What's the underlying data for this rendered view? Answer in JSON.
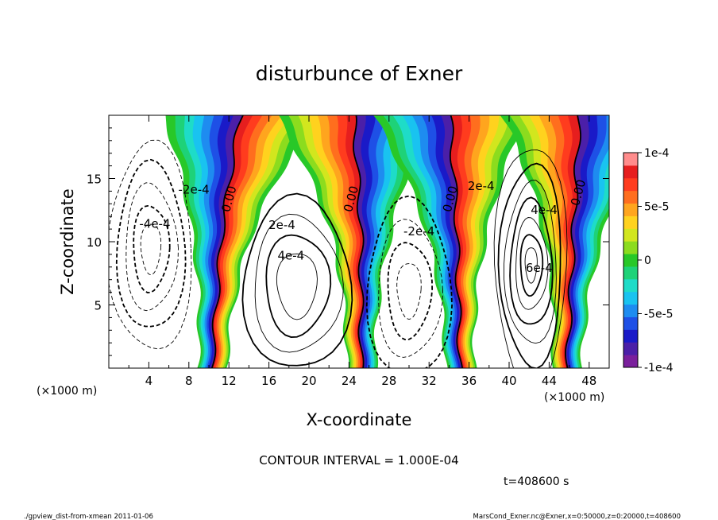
{
  "chart_data": {
    "type": "heatmap",
    "title": "disturbunce of Exner",
    "xlabel": "X-coordinate",
    "ylabel": "Z-coordinate",
    "x_unit": "(×1000 m)",
    "x_unit_right": "(×1000 m)",
    "xlim": [
      0,
      50
    ],
    "ylim": [
      0,
      20
    ],
    "x_ticks": [
      4,
      8,
      12,
      16,
      20,
      24,
      28,
      32,
      36,
      40,
      44,
      48
    ],
    "y_ticks": [
      5,
      10,
      15
    ],
    "colorbar": {
      "min": -0.0001,
      "max": 0.0001,
      "tick_labels": [
        "1e-4",
        "5e-5",
        "0",
        "-5e-5",
        "-1e-4"
      ],
      "tick_values": [
        0.0001,
        5e-05,
        0,
        -5e-05,
        -0.0001
      ],
      "colors": [
        "#7a1f9c",
        "#4b1fa8",
        "#1a1ac8",
        "#1e50e6",
        "#1e8cf0",
        "#19c3f0",
        "#1edcc8",
        "#1ed278",
        "#28c828",
        "#8cdc1e",
        "#d2e61e",
        "#ffd21e",
        "#ffa51e",
        "#ff6e1e",
        "#ff3c1e",
        "#e61e1e",
        "#ff8c8c"
      ]
    },
    "contour_interval_text": "CONTOUR INTERVAL = 1.000E-04",
    "contour_labels": [
      {
        "text": "-2e-4",
        "x": 8.5,
        "z": 13.8
      },
      {
        "text": "-4e-4",
        "x": 4.6,
        "z": 11.1
      },
      {
        "text": "0.00",
        "x": 12.4,
        "z": 13.3
      },
      {
        "text": "2e-4",
        "x": 17.3,
        "z": 11.0
      },
      {
        "text": "4e-4",
        "x": 18.2,
        "z": 8.6
      },
      {
        "text": "0.00",
        "x": 24.6,
        "z": 13.3
      },
      {
        "text": "-2e-4",
        "x": 31.0,
        "z": 10.5
      },
      {
        "text": "0.00",
        "x": 34.5,
        "z": 13.3
      },
      {
        "text": "2e-4",
        "x": 37.2,
        "z": 14.1
      },
      {
        "text": "4e-4",
        "x": 43.5,
        "z": 12.2
      },
      {
        "text": "6e-4",
        "x": 43.0,
        "z": 7.6
      },
      {
        "text": "0.00",
        "x": 47.3,
        "z": 13.8
      }
    ],
    "zero_lines_x": [
      12.5,
      25.0,
      34.8,
      47.0
    ]
  },
  "time_label": "t=408600 s",
  "footer_left": "./gpview_dist-from-xmean  2011-01-06",
  "footer_right": "MarsCond_Exner.nc@Exner,x=0:50000,z=0:20000,t=408600"
}
